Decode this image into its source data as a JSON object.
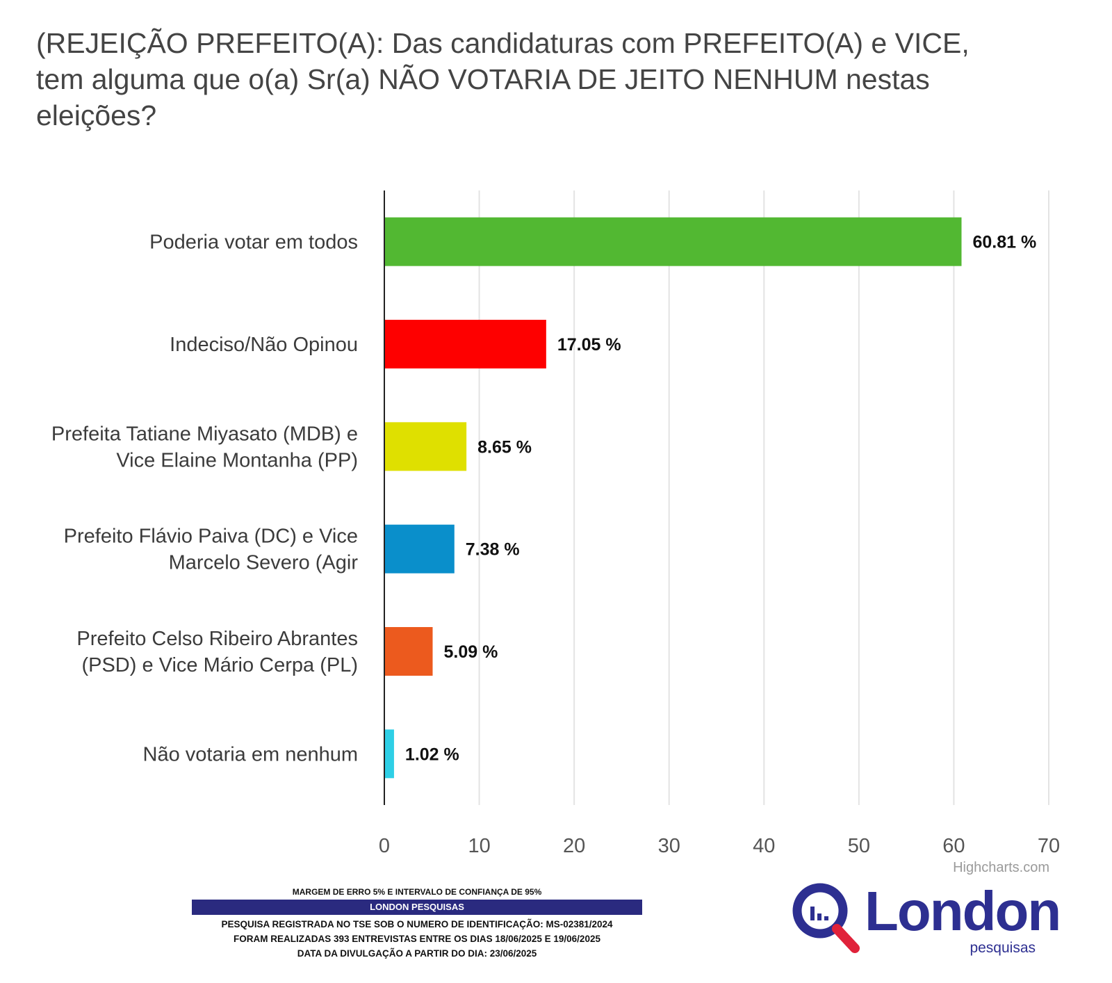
{
  "title": "(REJEIÇÃO PREFEITO(A): Das candidaturas com PREFEITO(A) e VICE, tem alguma que o(a) Sr(a) NÃO VOTARIA DE JEITO NENHUM nestas eleições?",
  "chart_data": {
    "type": "bar",
    "orientation": "horizontal",
    "title": "(REJEIÇÃO PREFEITO(A): Das candidaturas com PREFEITO(A) e VICE, tem alguma que o(a) Sr(a) NÃO VOTARIA DE JEITO NENHUM nestas eleições?",
    "categories": [
      [
        "Poderia votar em todos"
      ],
      [
        "Indeciso/Não Opinou"
      ],
      [
        "Prefeita Tatiane Miyasato (MDB) e",
        "Vice Elaine Montanha (PP)"
      ],
      [
        "Prefeito Flávio Paiva (DC) e Vice",
        "Marcelo Severo (Agir"
      ],
      [
        "Prefeito Celso Ribeiro Abrantes",
        "(PSD) e Vice Mário Cerpa (PL)"
      ],
      [
        "Não votaria em nenhum"
      ]
    ],
    "values": [
      60.81,
      17.05,
      8.65,
      7.38,
      5.09,
      1.02
    ],
    "value_labels": [
      "60.81 %",
      "17.05 %",
      "8.65 %",
      "7.38 %",
      "5.09 %",
      "1.02 %"
    ],
    "colors": [
      "#52b832",
      "#fe0000",
      "#dfe000",
      "#0a8fcb",
      "#ec5a1e",
      "#2ecfe6"
    ],
    "xlim": [
      0,
      70
    ],
    "ticks": [
      0,
      10,
      20,
      30,
      40,
      50,
      60,
      70
    ],
    "grid": true,
    "xlabel": "",
    "ylabel": "",
    "credits": "Highcharts.com"
  },
  "footer": {
    "margin_text": "MARGEM DE ERRO 5% E INTERVALO DE CONFIANÇA DE 95%",
    "company_band": "LONDON PESQUISAS",
    "registration": "PESQUISA REGISTRADA NO TSE SOB O NUMERO DE IDENTIFICAÇÃO: MS-02381/2024",
    "interviews": "FORAM REALIZADAS 393 ENTREVISTAS ENTRE OS DIAS 18/06/2025 E 19/06/2025",
    "release_date": "DATA DA DIVULGAÇÃO A PARTIR DO DIA: 23/06/2025"
  },
  "logo": {
    "name": "London",
    "tagline": "pesquisas",
    "colors": {
      "text": "#2d2f91",
      "ring": "#2d2f91",
      "handle": "#e0223a"
    }
  }
}
